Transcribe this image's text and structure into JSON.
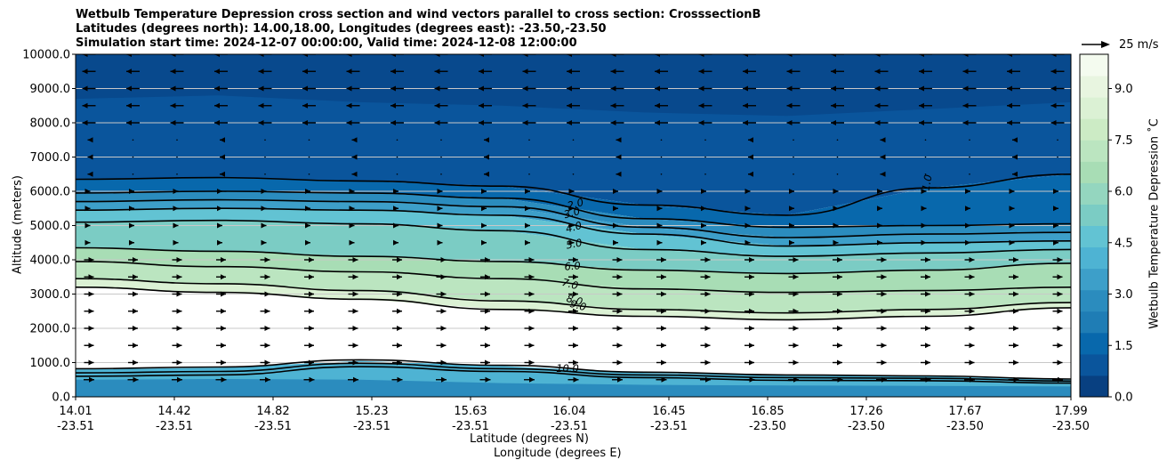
{
  "title": {
    "line1": "Wetbulb Temperature Depression cross section and wind vectors parallel to cross section: CrosssectionB",
    "line2": "Latitudes (degrees north): 14.00,18.00, Longitudes (degrees east): -23.50,-23.50",
    "line3": "Simulation start time: 2024-12-07 00:00:00, Valid time: 2024-12-08 12:00:00"
  },
  "quiver_key": "25 m/s",
  "chart_data": {
    "type": "contour",
    "variable": "Wetbulb Temperature Depression",
    "xlabel": "Latitude (degrees N)",
    "xlabel2": "Longitude (degrees E)",
    "ylabel": "Altitude (meters)",
    "colorbar_label": "Wetbulb Temperature Depression ˚C",
    "ylim": [
      0,
      10000
    ],
    "yticks": [
      "0.0",
      "1000.0",
      "2000.0",
      "3000.0",
      "4000.0",
      "5000.0",
      "6000.0",
      "7000.0",
      "8000.0",
      "9000.0",
      "10000.0"
    ],
    "xticks": [
      {
        "lat": "14.01",
        "lon": "-23.51"
      },
      {
        "lat": "14.42",
        "lon": "-23.51"
      },
      {
        "lat": "14.82",
        "lon": "-23.51"
      },
      {
        "lat": "15.23",
        "lon": "-23.51"
      },
      {
        "lat": "15.63",
        "lon": "-23.51"
      },
      {
        "lat": "16.04",
        "lon": "-23.51"
      },
      {
        "lat": "16.45",
        "lon": "-23.51"
      },
      {
        "lat": "16.85",
        "lon": "-23.50"
      },
      {
        "lat": "17.26",
        "lon": "-23.50"
      },
      {
        "lat": "17.67",
        "lon": "-23.50"
      },
      {
        "lat": "17.99",
        "lon": "-23.50"
      }
    ],
    "colorbar_ticks": [
      "0.0",
      "1.5",
      "3.0",
      "4.5",
      "6.0",
      "7.5",
      "9.0"
    ],
    "colorbar_range": [
      0,
      10
    ],
    "contour_labels": [
      "2.0",
      "3.0",
      "4.0",
      "5.0",
      "6.0",
      "7.0",
      "8.0",
      "9.0",
      "10.0",
      "1.0"
    ],
    "contour_levels": [
      {
        "level": 1,
        "heights": [
          6350,
          6400,
          6300,
          6150,
          5600,
          5300,
          6100,
          6500
        ]
      },
      {
        "level": 2,
        "heights": [
          5950,
          6000,
          5950,
          5800,
          5200,
          4950,
          5000,
          5050
        ]
      },
      {
        "level": 3,
        "heights": [
          5700,
          5750,
          5700,
          5550,
          4950,
          4650,
          4750,
          4800
        ]
      },
      {
        "level": 4,
        "heights": [
          5450,
          5500,
          5450,
          5300,
          4750,
          4400,
          4500,
          4550
        ]
      },
      {
        "level": 5,
        "heights": [
          5100,
          5150,
          5050,
          4850,
          4300,
          4100,
          4200,
          4300
        ]
      },
      {
        "level": 6,
        "heights": [
          4350,
          4250,
          4100,
          3950,
          3700,
          3600,
          3700,
          3900
        ]
      },
      {
        "level": 7,
        "heights": [
          3950,
          3800,
          3650,
          3450,
          3150,
          3050,
          3100,
          3200
        ]
      },
      {
        "level": 8,
        "heights": [
          3450,
          3300,
          3100,
          2800,
          2550,
          2450,
          2550,
          2750
        ]
      },
      {
        "level": 9,
        "heights": [
          3200,
          3050,
          2850,
          2550,
          2350,
          2250,
          2350,
          2600
        ]
      }
    ]
  }
}
